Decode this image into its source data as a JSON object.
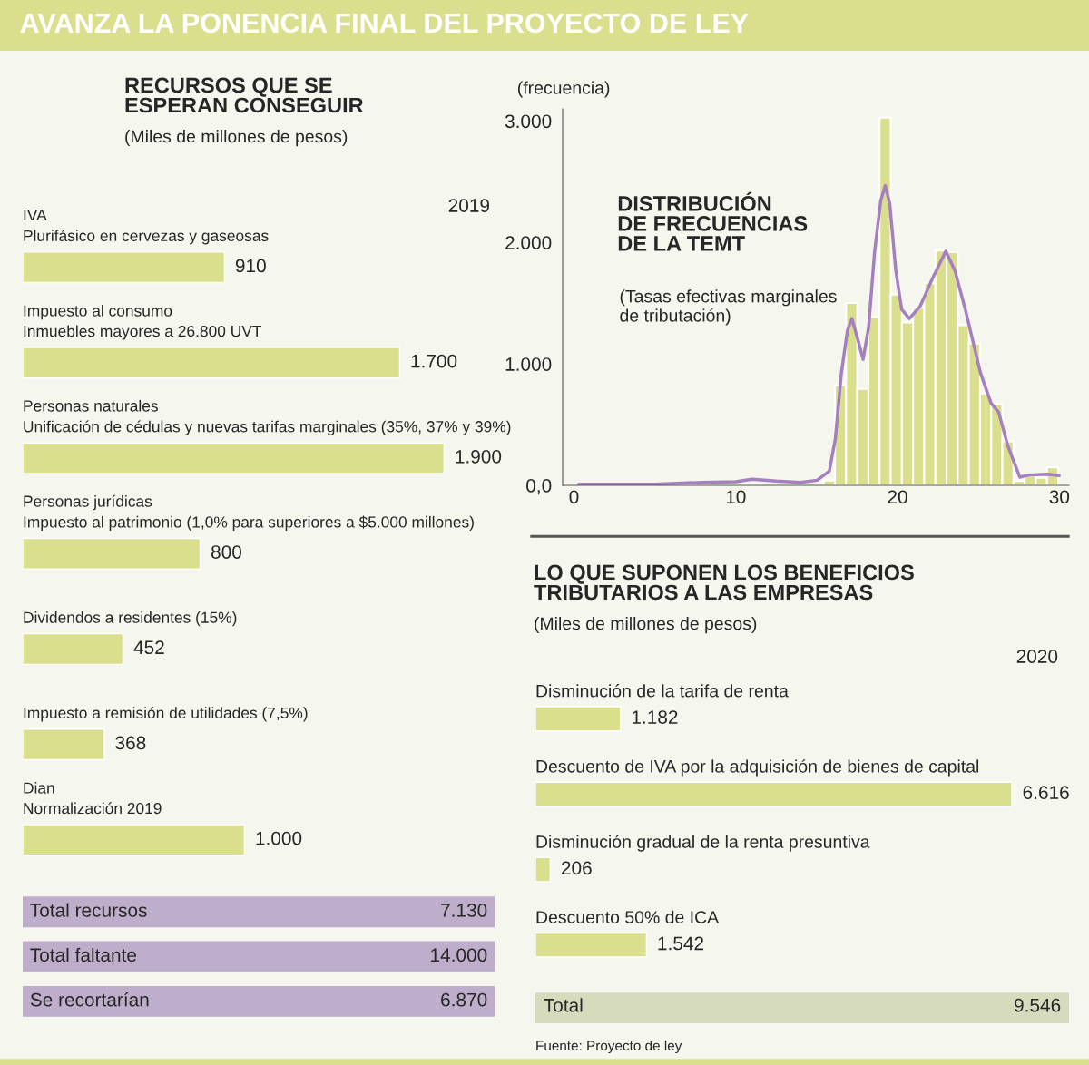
{
  "chart_data": [
    {
      "type": "other",
      "title": "AVANZA LA PONENCIA FINAL DEL PROYECTO DE LEY",
      "color": "#d9df8c"
    },
    {
      "type": "bar",
      "orientation": "horizontal",
      "title": "RECURSOS QUE SE\nESPERAN CONSEGUIR",
      "subtitle": "(Miles de millones de pesos)",
      "categories": [
        "IVA\nPlurifásico en cervezas y gaseosas",
        "Impuesto al consumo\nInmuebles mayores a 26.800 UVT",
        "Personas naturales\nUnificación de cédulas y nuevas tarifas marginales (35%, 37% y 39%)",
        "Personas jurídicas\nImpuesto al patrimonio (1,0% para superiores a $5.000 millones)",
        "Dividendos a residentes (15%)",
        "Impuesto a remisión de utilidades (7,5%)",
        "Dian\nNormalización 2019"
      ],
      "values": [
        910,
        1700,
        1900,
        800,
        452,
        368,
        1000
      ],
      "value_labels": [
        "910",
        "1.700",
        "1.900",
        "800",
        "452",
        "368",
        "1.000"
      ],
      "color": "#d9df8c",
      "annotations": [
        "2019"
      ]
    },
    {
      "type": "other",
      "categories": [
        "Total recursos",
        "Total faltante",
        "Se recortarían"
      ],
      "value_labels": [
        "7.130",
        "14.000",
        "6.870"
      ],
      "color": "#bfaecb"
    },
    {
      "type": "histogram",
      "title": "DISTRIBUCIÓN\nDE FRECUENCIAS\nDE LA TEMT",
      "subtitle": "(Tasas efectivas marginales\nde tributación)",
      "ylabel": "(frecuencia)",
      "bins": [
        15.44,
        16.13,
        16.82,
        17.51,
        18.2,
        18.89,
        19.58,
        20.27,
        20.96,
        21.65,
        22.34,
        23.03,
        23.72,
        24.41,
        25.1,
        25.79,
        26.48,
        27.17,
        27.86,
        28.55,
        29.24,
        29.93
      ],
      "values": [
        40,
        826,
        1502,
        794,
        1386,
        3027,
        1570,
        1341,
        1463,
        1664,
        1933,
        1920,
        1318,
        1167,
        756,
        669,
        363,
        35,
        80,
        62,
        147
      ],
      "color": "#d9df8c",
      "series": [
        {
          "type": "line",
          "color": "#a57fbf",
          "x": [
            0.3,
            5,
            8,
            10,
            11,
            12.5,
            14,
            15.03,
            15.78,
            16.15,
            16.53,
            16.9,
            17.18,
            17.55,
            17.87,
            18.21,
            18.58,
            18.96,
            19.24,
            19.52,
            19.89,
            20.26,
            20.73,
            21.39,
            22.14,
            22.98,
            23.54,
            24.19,
            25.13,
            25.78,
            26.25,
            26.81,
            27.56,
            28.12,
            29.24,
            29.99
          ],
          "values": [
            10,
            10,
            25,
            30,
            50,
            35,
            25,
            42,
            117,
            378,
            925,
            1274,
            1373,
            1199,
            1037,
            1299,
            1920,
            2343,
            2468,
            2318,
            1771,
            1448,
            1373,
            1473,
            1697,
            1928,
            1771,
            1448,
            925,
            677,
            602,
            328,
            67,
            85,
            92,
            80
          ]
        }
      ],
      "xlim": [
        -0.7,
        30.6
      ],
      "xticks": [
        0,
        10,
        20,
        30
      ],
      "ylim": [
        0,
        3100
      ],
      "yticks": [
        {
          "value": 0,
          "label": "0,0"
        },
        {
          "value": 1000,
          "label": "1.000"
        },
        {
          "value": 2000,
          "label": "2.000"
        },
        {
          "value": 3000,
          "label": "3.000"
        }
      ]
    },
    {
      "type": "bar",
      "orientation": "horizontal",
      "title": "LO QUE SUPONEN LOS BENEFICIOS\nTRIBUTARIOS A LAS EMPRESAS",
      "subtitle": "(Miles de millones de pesos)",
      "categories": [
        "Disminución de la tarifa de renta",
        "Descuento de IVA por la adquisición de bienes de capital",
        "Disminución gradual de la renta presuntiva",
        "Descuento 50% de ICA"
      ],
      "values": [
        1182,
        6616,
        206,
        1542
      ],
      "value_labels": [
        "1.182",
        "6.616",
        "206",
        "1.542"
      ],
      "color": "#d9df8c",
      "annotations": [
        "2020"
      ]
    },
    {
      "type": "other",
      "categories": [
        "Total"
      ],
      "value_labels": [
        "9.546"
      ],
      "color": "#d6dbbd",
      "annotations": [
        "Fuente: Proyecto de ley"
      ]
    }
  ]
}
